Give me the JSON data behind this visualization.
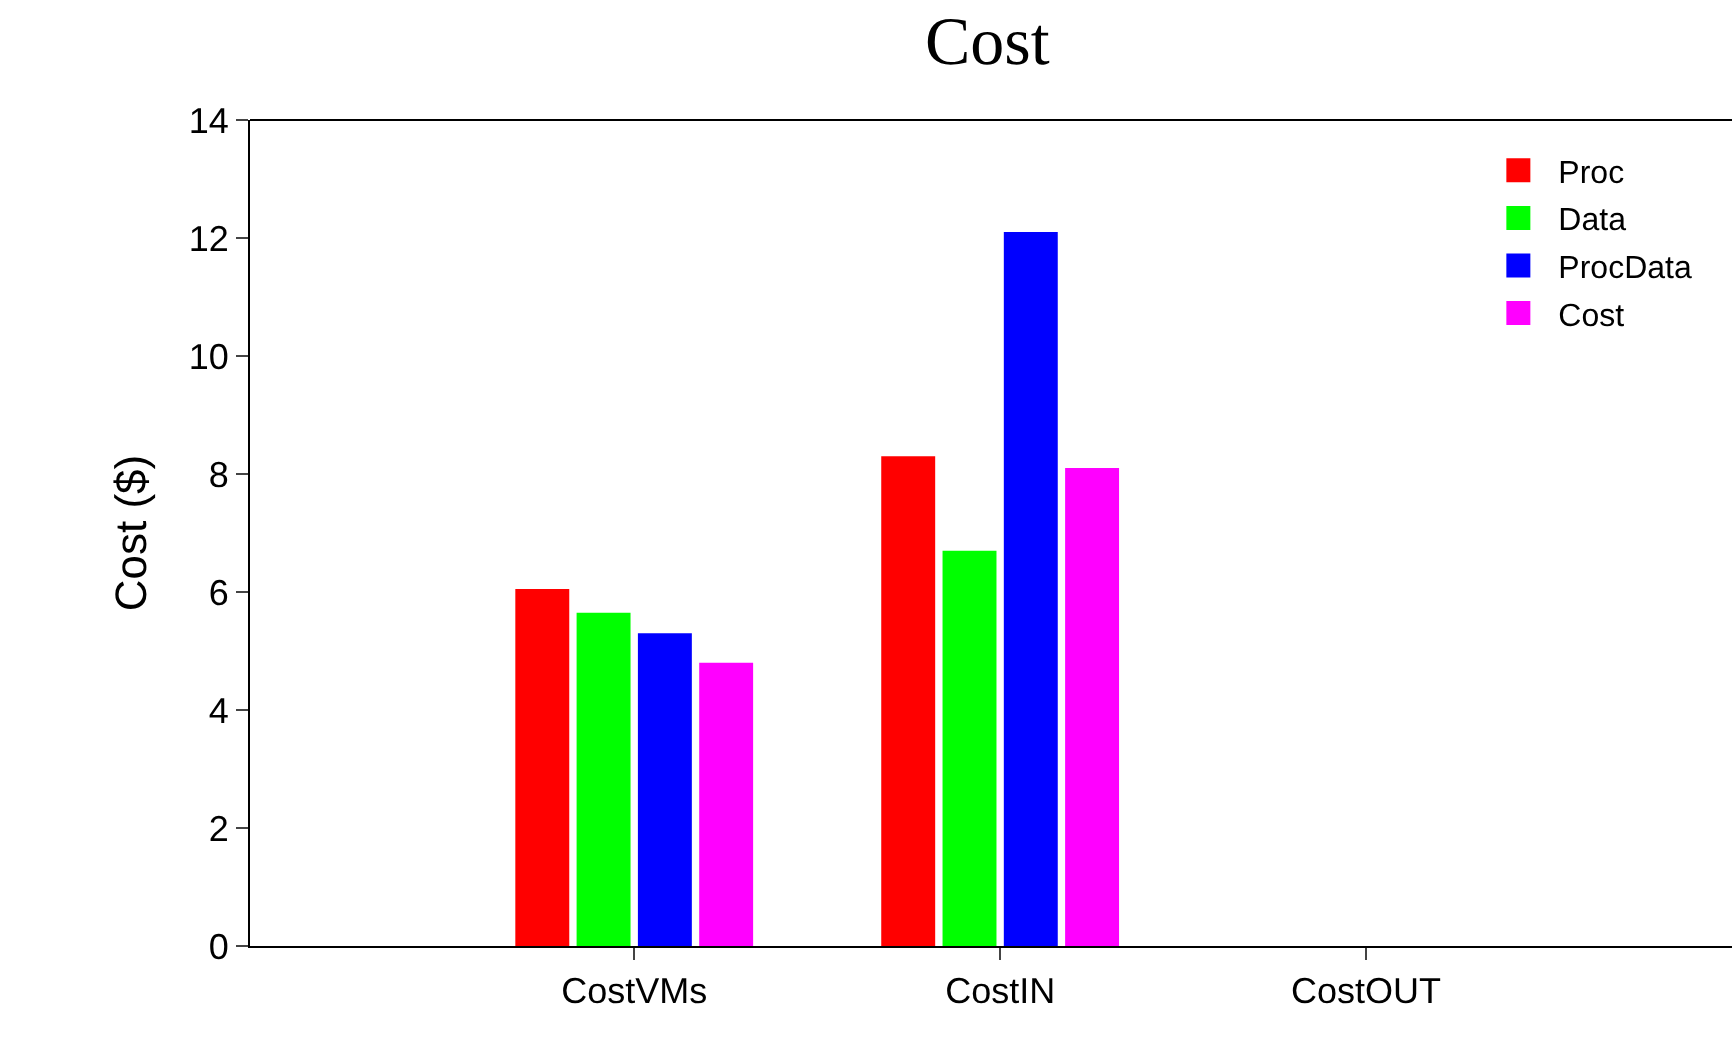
{
  "chart_data": {
    "type": "bar",
    "title": "Cost",
    "ylabel": "Cost ($)",
    "categories": [
      "CostVMs",
      "CostIN",
      "CostOUT"
    ],
    "series": [
      {
        "name": "Proc",
        "color": "#ff0000",
        "values": [
          6.05,
          8.3,
          0
        ]
      },
      {
        "name": "Data",
        "color": "#00ff00",
        "values": [
          5.65,
          6.7,
          0
        ]
      },
      {
        "name": "ProcData",
        "color": "#0000ff",
        "values": [
          5.3,
          12.1,
          0
        ]
      },
      {
        "name": "Cost",
        "color": "#ff00ff",
        "values": [
          4.8,
          8.1,
          0
        ]
      }
    ],
    "ylim": [
      0,
      14
    ],
    "yticks": [
      0,
      2,
      4,
      6,
      8,
      10,
      12,
      14
    ],
    "grid": false,
    "legend": "top right"
  }
}
